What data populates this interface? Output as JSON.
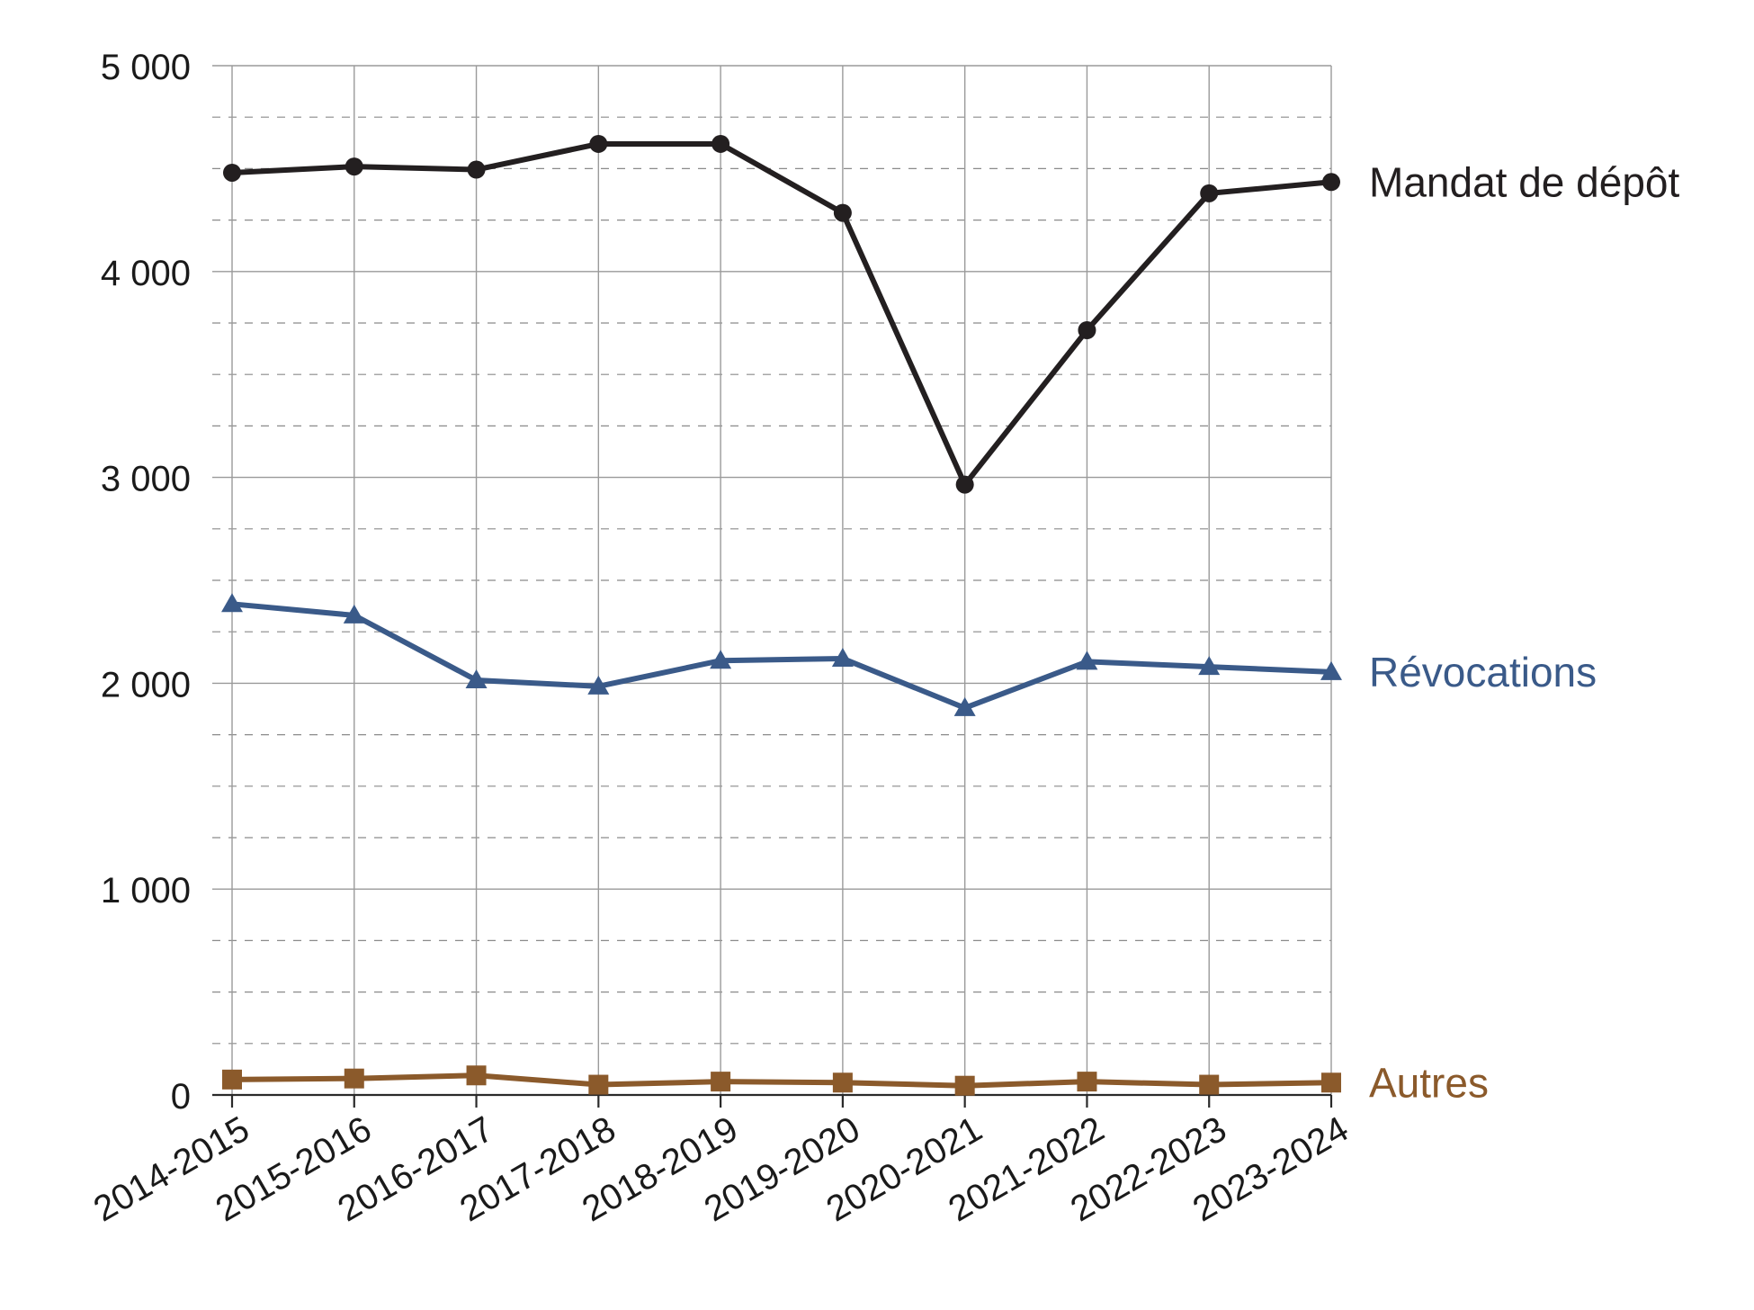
{
  "chart_data": {
    "type": "line",
    "title": "",
    "xlabel": "",
    "ylabel": "",
    "categories": [
      "2014-2015",
      "2015-2016",
      "2016-2017",
      "2017-2018",
      "2018-2019",
      "2019-2020",
      "2020-2021",
      "2021-2022",
      "2022-2023",
      "2023-2024"
    ],
    "ylim": [
      0,
      5000
    ],
    "y_ticks": [
      "0",
      "1 000",
      "2 000",
      "3 000",
      "4 000",
      "5 000"
    ],
    "y_tick_values": [
      0,
      1000,
      2000,
      3000,
      4000,
      5000
    ],
    "grid": true,
    "legend": "direct labels at right end of each line",
    "series": [
      {
        "name": "Mandat de dépôt",
        "color": "#231f20",
        "marker": "circle",
        "values": [
          4480,
          4510,
          4495,
          4620,
          4620,
          4285,
          2965,
          3715,
          4380,
          4435
        ]
      },
      {
        "name": "Révocations",
        "color": "#3a5a89",
        "marker": "triangle",
        "values": [
          2385,
          2330,
          2015,
          1985,
          2110,
          2120,
          1880,
          2105,
          2080,
          2055
        ]
      },
      {
        "name": "Autres",
        "color": "#8b5a2b",
        "marker": "square",
        "values": [
          75,
          80,
          95,
          50,
          65,
          60,
          45,
          65,
          50,
          60
        ]
      }
    ]
  }
}
